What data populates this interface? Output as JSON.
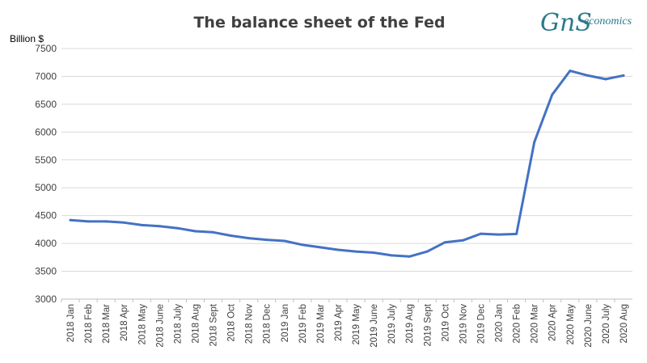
{
  "logo": {
    "mark": "GnS",
    "text": "economics"
  },
  "chart_data": {
    "type": "line",
    "title": "The balance sheet of the Fed",
    "ylabel": "Billion $",
    "xlabel": "",
    "ylim": [
      3000,
      7500
    ],
    "yticks": [
      3000,
      3500,
      4000,
      4500,
      5000,
      5500,
      6000,
      6500,
      7000,
      7500
    ],
    "grid": true,
    "legend": "none",
    "line_color": "#4472c4",
    "categories": [
      "2018 Jan",
      "2018 Feb",
      "2018 Mar",
      "2018 Apr",
      "2018 May",
      "2018 June",
      "2018 July",
      "2018 Aug",
      "2018 Sept",
      "2018 Oct",
      "2018 Nov",
      "2018 Dec",
      "2019 Jan",
      "2019 Feb",
      "2019 Mar",
      "2019 Apr",
      "2019 May",
      "2019 June",
      "2019 July",
      "2019 Aug",
      "2019 Sept",
      "2019 Oct",
      "2019 Nov",
      "2019 Dec",
      "2020 Jan",
      "2020 Feb",
      "2020 Mar",
      "2020 Apr",
      "2020 May",
      "2020 June",
      "2020 July",
      "2020 Aug"
    ],
    "series": [
      {
        "values": [
          4420,
          4395,
          4395,
          4375,
          4330,
          4310,
          4275,
          4220,
          4200,
          4140,
          4095,
          4065,
          4045,
          3975,
          3930,
          3885,
          3855,
          3835,
          3785,
          3765,
          3855,
          4020,
          4055,
          4175,
          4160,
          4170,
          5820,
          6670,
          7100,
          7015,
          6950,
          7015
        ]
      }
    ]
  }
}
